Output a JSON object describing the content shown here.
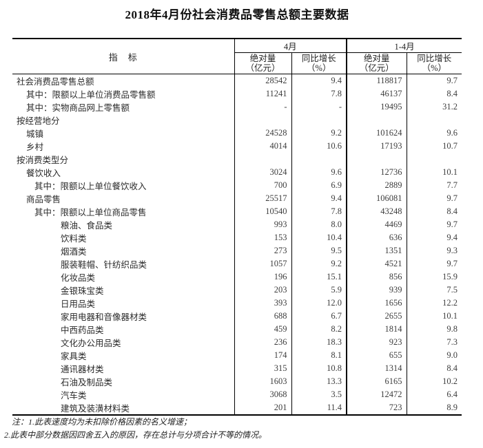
{
  "title": "2018年4月份社会消费品零售总额主要数据",
  "table": {
    "header": {
      "indicator": "指　标",
      "april": "4月",
      "jan_apr": "1-4月",
      "absolute_line1": "绝对量",
      "absolute_line2": "（亿元）",
      "growth_line1": "同比增长",
      "growth_line2": "（%）"
    },
    "rows": [
      {
        "label": "社会消费品零售总额",
        "indent": 0,
        "values": [
          "28542",
          "9.4",
          "118817",
          "9.7"
        ]
      },
      {
        "label": "其中：限额以上单位消费品零售额",
        "indent": 1,
        "values": [
          "11241",
          "7.8",
          "46137",
          "8.4"
        ]
      },
      {
        "label": "其中：实物商品网上零售额",
        "indent": 1,
        "values": [
          "-",
          "-",
          "19495",
          "31.2"
        ]
      },
      {
        "label": "按经营地分",
        "indent": 0,
        "values": [
          "",
          "",
          "",
          ""
        ]
      },
      {
        "label": "城镇",
        "indent": 1,
        "values": [
          "24528",
          "9.2",
          "101624",
          "9.6"
        ]
      },
      {
        "label": "乡村",
        "indent": 1,
        "values": [
          "4014",
          "10.6",
          "17193",
          "10.7"
        ]
      },
      {
        "label": "按消费类型分",
        "indent": 0,
        "values": [
          "",
          "",
          "",
          ""
        ]
      },
      {
        "label": "餐饮收入",
        "indent": 1,
        "values": [
          "3024",
          "9.6",
          "12736",
          "10.1"
        ]
      },
      {
        "label": "其中：限额以上单位餐饮收入",
        "indent": 2,
        "values": [
          "700",
          "6.9",
          "2889",
          "7.7"
        ]
      },
      {
        "label": "商品零售",
        "indent": 1,
        "values": [
          "25517",
          "9.4",
          "106081",
          "9.7"
        ]
      },
      {
        "label": "其中：限额以上单位商品零售",
        "indent": 2,
        "values": [
          "10540",
          "7.8",
          "43248",
          "8.4"
        ]
      },
      {
        "label": "粮油、食品类",
        "indent": 3,
        "values": [
          "993",
          "8.0",
          "4469",
          "9.7"
        ]
      },
      {
        "label": "饮料类",
        "indent": 3,
        "values": [
          "153",
          "10.4",
          "636",
          "9.4"
        ]
      },
      {
        "label": "烟酒类",
        "indent": 3,
        "values": [
          "273",
          "9.5",
          "1351",
          "9.3"
        ]
      },
      {
        "label": "服装鞋帽、针纺织品类",
        "indent": 3,
        "values": [
          "1057",
          "9.2",
          "4521",
          "9.7"
        ]
      },
      {
        "label": "化妆品类",
        "indent": 3,
        "values": [
          "196",
          "15.1",
          "856",
          "15.9"
        ]
      },
      {
        "label": "金银珠宝类",
        "indent": 3,
        "values": [
          "203",
          "5.9",
          "939",
          "7.5"
        ]
      },
      {
        "label": "日用品类",
        "indent": 3,
        "values": [
          "393",
          "12.0",
          "1656",
          "12.2"
        ]
      },
      {
        "label": "家用电器和音像器材类",
        "indent": 3,
        "values": [
          "688",
          "6.7",
          "2655",
          "10.1"
        ]
      },
      {
        "label": "中西药品类",
        "indent": 3,
        "values": [
          "459",
          "8.2",
          "1814",
          "9.8"
        ]
      },
      {
        "label": "文化办公用品类",
        "indent": 3,
        "values": [
          "236",
          "18.3",
          "923",
          "7.3"
        ]
      },
      {
        "label": "家具类",
        "indent": 3,
        "values": [
          "174",
          "8.1",
          "655",
          "9.0"
        ]
      },
      {
        "label": "通讯器材类",
        "indent": 3,
        "values": [
          "315",
          "10.8",
          "1314",
          "8.4"
        ]
      },
      {
        "label": "石油及制品类",
        "indent": 3,
        "values": [
          "1603",
          "13.3",
          "6165",
          "10.2"
        ]
      },
      {
        "label": "汽车类",
        "indent": 3,
        "values": [
          "3068",
          "3.5",
          "12472",
          "6.4"
        ]
      },
      {
        "label": "建筑及装潢材料类",
        "indent": 3,
        "values": [
          "201",
          "11.4",
          "723",
          "8.9"
        ]
      }
    ]
  },
  "notes": {
    "line1": "注：1.此表速度均为未扣除价格因素的名义增速；",
    "line2": "2.此表中部分数据因四舍五入的原因，存在总计与分项合计不等的情况。"
  }
}
